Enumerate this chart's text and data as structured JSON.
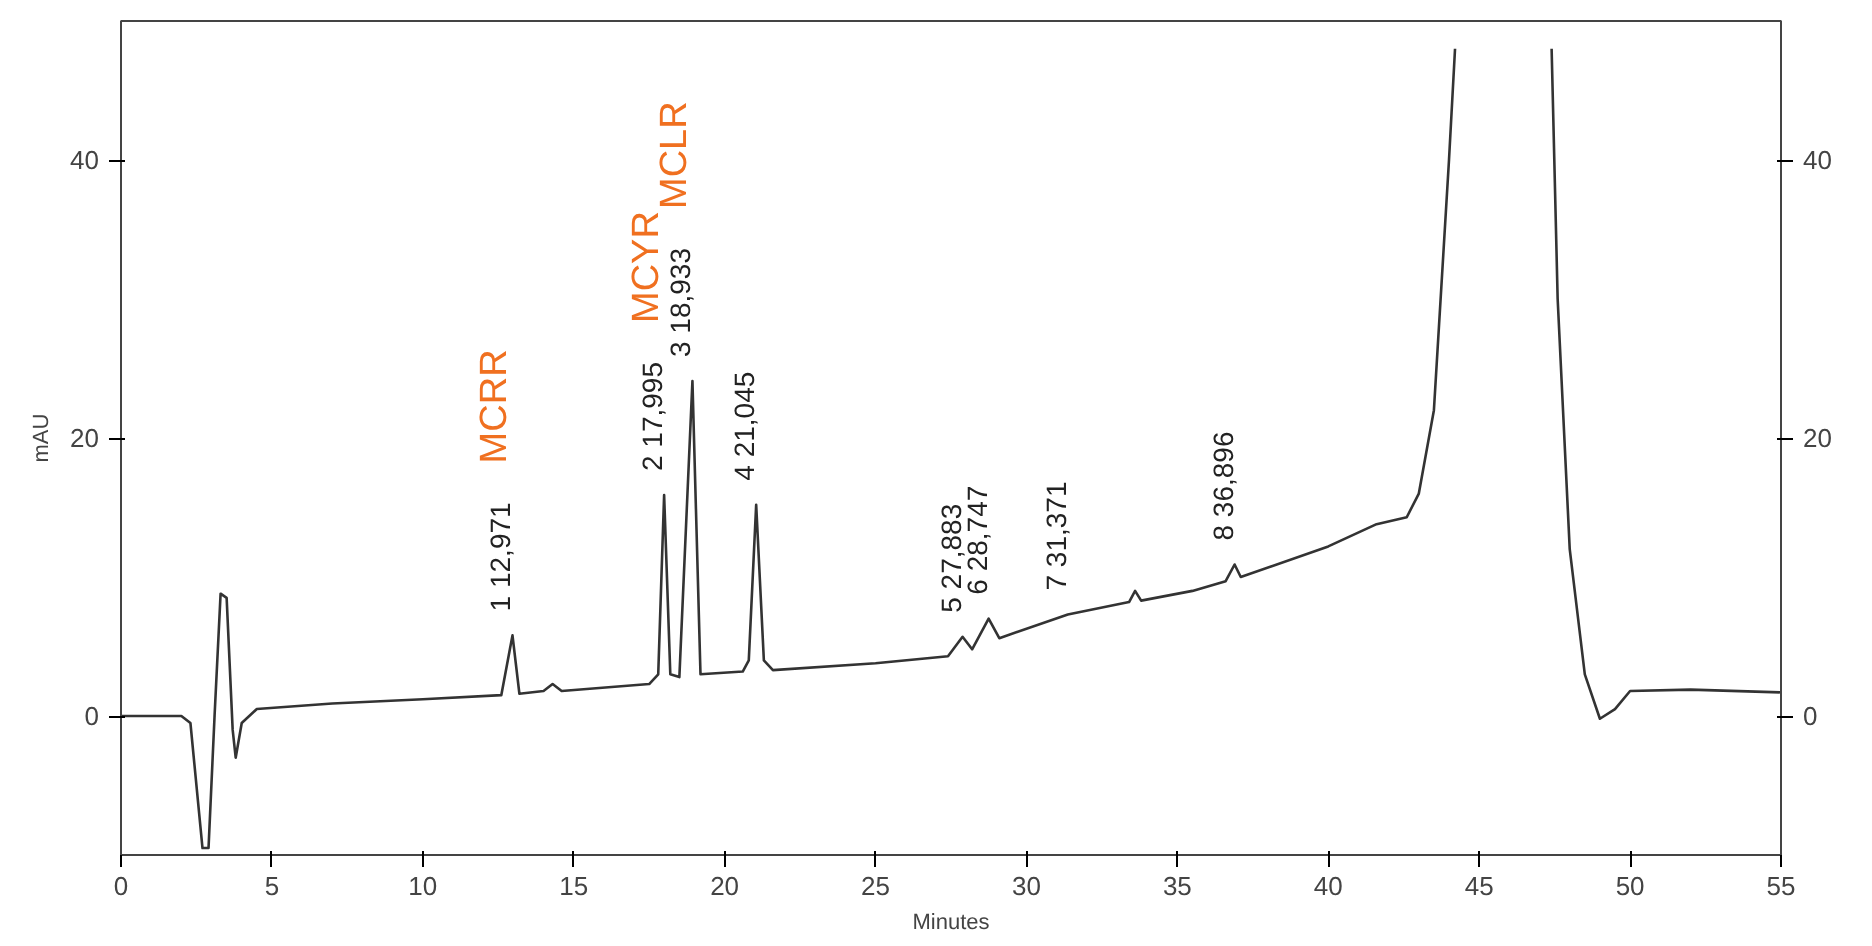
{
  "chart_data": {
    "type": "line",
    "xlabel": "Minutes",
    "ylabel": "mAU",
    "xlim": [
      0,
      55
    ],
    "xticks": [
      0,
      5,
      10,
      15,
      20,
      25,
      30,
      35,
      40,
      45,
      50,
      55
    ],
    "ylim": [
      -10,
      50
    ],
    "yticks": [
      0,
      20,
      40
    ],
    "y2lim": [
      -10,
      50
    ],
    "y2ticks": [
      0,
      20,
      40
    ],
    "grid": false,
    "marker": "none",
    "line_style": "solid",
    "series": [
      {
        "color": "#333333",
        "x": [
          0,
          2,
          2.3,
          2.7,
          2.9,
          3.1,
          3.3,
          3.5,
          3.7,
          3.8,
          4.0,
          4.5,
          7,
          10,
          12.6,
          12.971,
          13.2,
          14,
          14.3,
          14.6,
          17.5,
          17.8,
          17.995,
          18.2,
          18.5,
          18.933,
          19.2,
          20.6,
          20.8,
          21.045,
          21.3,
          21.6,
          25,
          27.4,
          27.883,
          28.2,
          28.747,
          29.1,
          31.371,
          33.4,
          33.6,
          33.8,
          35.5,
          36.6,
          36.896,
          37.1,
          40,
          41.6,
          42.6,
          43.0,
          43.5,
          44,
          44.2,
          44.3,
          47.3,
          47.4,
          47.6,
          48.0,
          48.5,
          49.0,
          49.5,
          50,
          52,
          55
        ],
        "values": [
          0,
          0,
          -0.5,
          -9.5,
          -9.5,
          0,
          8.8,
          8.5,
          -1,
          -3,
          -0.5,
          0.5,
          0.9,
          1.2,
          1.5,
          5.8,
          1.6,
          1.8,
          2.3,
          1.8,
          2.3,
          3,
          15.9,
          3,
          2.8,
          24.1,
          3,
          3.2,
          4,
          15.2,
          4,
          3.3,
          3.8,
          4.3,
          5.7,
          4.8,
          7.0,
          5.6,
          7.3,
          8.2,
          9.0,
          8.3,
          9.0,
          9.7,
          10.9,
          10.0,
          12.2,
          13.8,
          14.3,
          16,
          22,
          40,
          48,
          null,
          null,
          48,
          30,
          12,
          3,
          -0.2,
          0.5,
          1.8,
          1.9,
          1.7
        ]
      }
    ],
    "annotations": [
      {
        "text": "1 12,971",
        "x": 12.971,
        "y": 5.8
      },
      "MCRR",
      {
        "text": "2 17,995",
        "x": 17.995,
        "y": 15.9
      },
      "MCYR",
      {
        "text": "3 18,933",
        "x": 18.933,
        "y": 24.1
      },
      "MCLR",
      {
        "text": "4 21,045",
        "x": 21.045,
        "y": 15.2
      },
      {
        "text": "5 27,883",
        "x": 27.883,
        "y": 5.7
      },
      {
        "text": "6 28,747",
        "x": 28.747,
        "y": 7.0
      },
      {
        "text": "7 31,371",
        "x": 31.371,
        "y": 7.3
      },
      {
        "text": "8 36,896",
        "x": 36.896,
        "y": 10.9
      }
    ]
  }
}
